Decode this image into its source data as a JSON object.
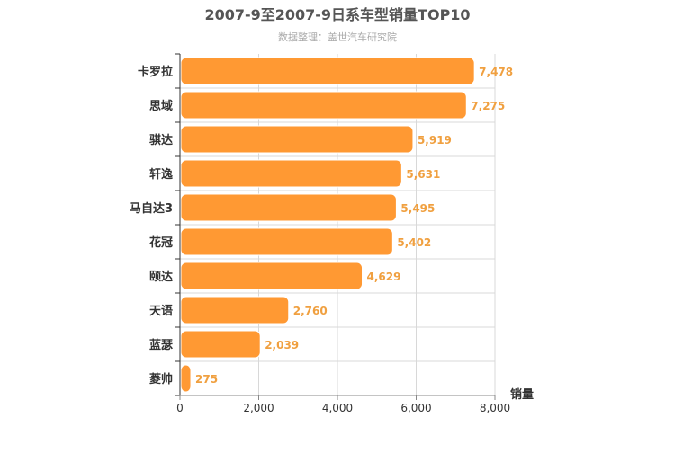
{
  "chart_data": {
    "type": "bar",
    "orientation": "horizontal",
    "title": "2007-9至2007-9日系车型销量TOP10",
    "subtitle": "数据整理：盖世汽车研究院",
    "xlabel": "销量",
    "ylabel": "",
    "xlim": [
      0,
      8000
    ],
    "x_ticks": [
      "0",
      "2,000",
      "4,000",
      "6,000",
      "8,000"
    ],
    "grid": true,
    "categories": [
      "卡罗拉",
      "思域",
      "骐达",
      "轩逸",
      "马自达3",
      "花冠",
      "颐达",
      "天语",
      "蓝瑟",
      "菱帅"
    ],
    "values": [
      7478,
      7275,
      5919,
      5631,
      5495,
      5402,
      4629,
      2760,
      2039,
      275
    ],
    "value_labels": [
      "7,478",
      "7,275",
      "5,919",
      "5,631",
      "5,495",
      "5,402",
      "4,629",
      "2,760",
      "2,039",
      "275"
    ],
    "bar_color": "#ff9933",
    "label_color": "#f0a040"
  }
}
